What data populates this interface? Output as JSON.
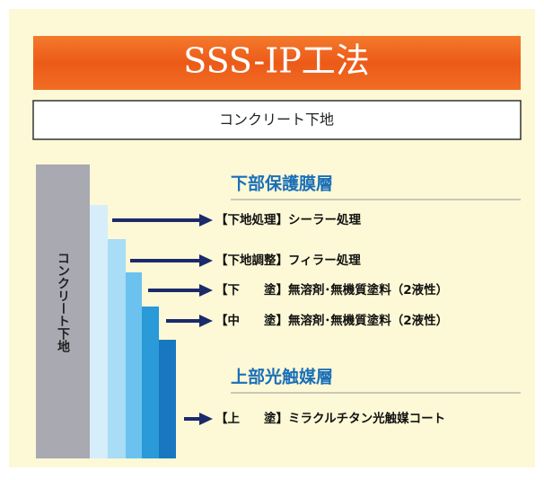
{
  "title": "SSS-IP工法",
  "subtitle": "コンクリート下地",
  "substrate_label": "コンクリート下地",
  "sections": [
    {
      "heading": "下部保護膜層",
      "items": [
        "【下地処理】シーラー処理",
        "【下地調整】フィラー処理",
        "【下　　塗】無溶剤･無機質塗料（2液性）",
        "【中　　塗】無溶剤･無機質塗料（2液性）"
      ]
    },
    {
      "heading": "上部光触媒層",
      "items": [
        "【上　　塗】ミラクルチタン光触媒コート"
      ]
    }
  ]
}
